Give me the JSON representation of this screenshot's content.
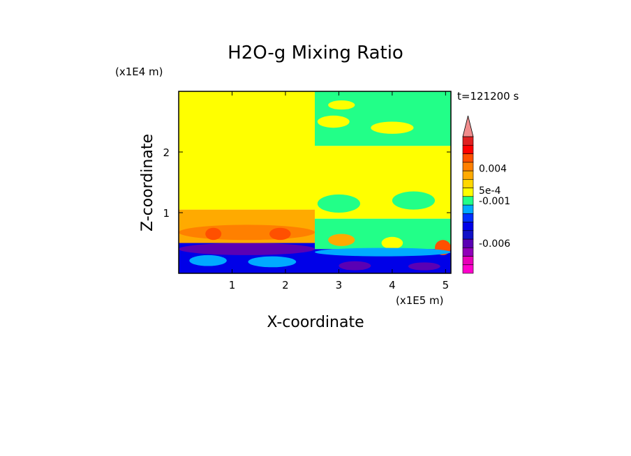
{
  "chart_data": {
    "type": "heatmap",
    "title": "H2O-g Mixing Ratio",
    "xlabel": "X-coordinate",
    "ylabel": "Z-coordinate",
    "x_unit": "(x1E5 m)",
    "y_unit": "(x1E4 m)",
    "time_label": "t=121200 s",
    "xlim": [
      0,
      5.1
    ],
    "ylim": [
      0,
      3.0
    ],
    "x_ticks": [
      "1",
      "2",
      "3",
      "4",
      "5"
    ],
    "x_tick_values": [
      1,
      2,
      3,
      4,
      5
    ],
    "y_ticks": [
      "1",
      "2"
    ],
    "y_tick_values": [
      1,
      2
    ],
    "colorbar": {
      "extend": "max",
      "extend_color": "#f08c8c",
      "colors": [
        "#ff00cc",
        "#e800b8",
        "#9000b8",
        "#5a00b4",
        "#1010c8",
        "#0000e8",
        "#0030ff",
        "#00aaff",
        "#22ff88",
        "#ffff00",
        "#ffd700",
        "#ffaa00",
        "#ff8000",
        "#ff5000",
        "#ff0000",
        "#e02020",
        "#f08c8c"
      ],
      "labels": [
        {
          "text": "0.004",
          "level": 12.3
        },
        {
          "text": "5e-4",
          "level": 9.7
        },
        {
          "text": "-0.001",
          "level": 8.5
        },
        {
          "text": "-0.006",
          "level": 3.5
        }
      ]
    },
    "regions": [
      {
        "x0": 0,
        "x1": 2.55,
        "z0": 1.05,
        "z1": 3.0,
        "color": "#ffff00"
      },
      {
        "x0": 0,
        "x1": 2.55,
        "z0": 0.5,
        "z1": 1.05,
        "color": "#ffaa00"
      },
      {
        "x0": 0,
        "x1": 2.55,
        "z0": 0,
        "z1": 0.5,
        "color": "#0000e8"
      },
      {
        "x0": 2.55,
        "x1": 5.1,
        "z0": 2.1,
        "z1": 3.0,
        "color": "#22ff88"
      },
      {
        "x0": 2.55,
        "x1": 5.1,
        "z0": 0.9,
        "z1": 2.1,
        "color": "#ffff00"
      },
      {
        "x0": 2.55,
        "x1": 5.1,
        "z0": 0.4,
        "z1": 0.9,
        "color": "#22ff88"
      },
      {
        "x0": 2.55,
        "x1": 5.1,
        "z0": 0,
        "z1": 0.4,
        "color": "#0000e8"
      }
    ],
    "features": [
      {
        "x0": 0,
        "x1": 2.55,
        "z0": 0.55,
        "z1": 0.8,
        "color": "#ff8000"
      },
      {
        "x0": 0.5,
        "x1": 0.8,
        "z0": 0.55,
        "z1": 0.75,
        "color": "#ff5000"
      },
      {
        "x0": 1.7,
        "x1": 2.1,
        "z0": 0.55,
        "z1": 0.75,
        "color": "#ff5000"
      },
      {
        "x0": 0,
        "x1": 2.55,
        "z0": 0.3,
        "z1": 0.5,
        "color": "#5a00b4"
      },
      {
        "x0": 0.2,
        "x1": 0.9,
        "z0": 0.12,
        "z1": 0.3,
        "color": "#00aaff"
      },
      {
        "x0": 1.3,
        "x1": 2.2,
        "z0": 0.1,
        "z1": 0.28,
        "color": "#00aaff"
      },
      {
        "x0": 2.55,
        "x1": 5.1,
        "z0": 2.0,
        "z1": 2.05,
        "color": "#ffff00"
      },
      {
        "x0": 2.55,
        "x1": 5.1,
        "z0": 1.9,
        "z1": 1.93,
        "color": "#ffff00"
      },
      {
        "x0": 2.6,
        "x1": 3.2,
        "z0": 2.4,
        "z1": 2.6,
        "color": "#ffff00"
      },
      {
        "x0": 3.6,
        "x1": 4.4,
        "z0": 2.3,
        "z1": 2.5,
        "color": "#ffff00"
      },
      {
        "x0": 2.8,
        "x1": 3.3,
        "z0": 2.7,
        "z1": 2.85,
        "color": "#ffff00"
      },
      {
        "x0": 2.6,
        "x1": 3.4,
        "z0": 1.0,
        "z1": 1.3,
        "color": "#22ff88"
      },
      {
        "x0": 4.0,
        "x1": 4.8,
        "z0": 1.05,
        "z1": 1.35,
        "color": "#22ff88"
      },
      {
        "x0": 2.8,
        "x1": 3.3,
        "z0": 0.45,
        "z1": 0.65,
        "color": "#ffaa00"
      },
      {
        "x0": 3.8,
        "x1": 4.2,
        "z0": 0.4,
        "z1": 0.6,
        "color": "#ffff00"
      },
      {
        "x0": 4.8,
        "x1": 5.1,
        "z0": 0.3,
        "z1": 0.55,
        "color": "#ff5000"
      },
      {
        "x0": 2.55,
        "x1": 5.1,
        "z0": 0.28,
        "z1": 0.42,
        "color": "#00aaff"
      },
      {
        "x0": 3.0,
        "x1": 3.6,
        "z0": 0.05,
        "z1": 0.2,
        "color": "#5a00b4"
      },
      {
        "x0": 4.3,
        "x1": 4.9,
        "z0": 0.05,
        "z1": 0.18,
        "color": "#5a00b4"
      }
    ]
  }
}
